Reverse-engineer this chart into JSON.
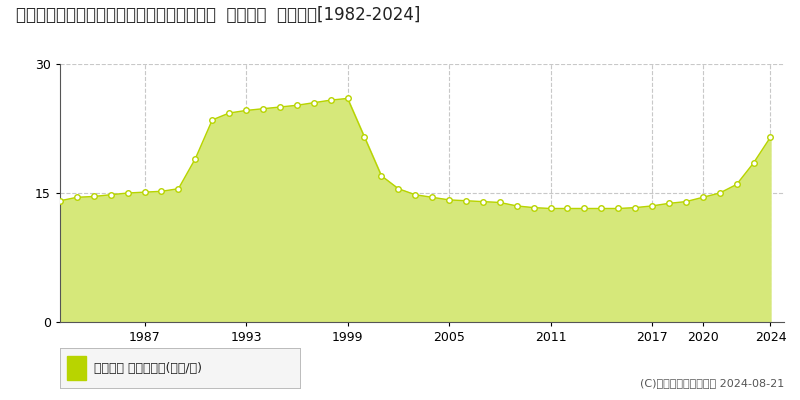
{
  "title": "北海道札幌市北区篠路１条３丁目１番５０外  地価公示  地価推移[1982-2024]",
  "years": [
    1982,
    1983,
    1984,
    1985,
    1986,
    1987,
    1988,
    1989,
    1990,
    1991,
    1992,
    1993,
    1994,
    1995,
    1996,
    1997,
    1998,
    1999,
    2000,
    2001,
    2002,
    2003,
    2004,
    2005,
    2006,
    2007,
    2008,
    2009,
    2010,
    2011,
    2012,
    2013,
    2014,
    2015,
    2016,
    2017,
    2018,
    2019,
    2020,
    2021,
    2022,
    2023,
    2024
  ],
  "values": [
    14.1,
    14.5,
    14.6,
    14.8,
    15.0,
    15.1,
    15.2,
    15.5,
    19.0,
    23.5,
    24.3,
    24.6,
    24.8,
    25.0,
    25.2,
    25.5,
    25.8,
    26.0,
    21.5,
    17.0,
    15.5,
    14.8,
    14.5,
    14.2,
    14.1,
    14.0,
    13.9,
    13.5,
    13.3,
    13.2,
    13.2,
    13.2,
    13.2,
    13.2,
    13.3,
    13.5,
    13.8,
    14.0,
    14.5,
    15.0,
    16.0,
    18.5,
    21.5
  ],
  "line_color": "#b8d400",
  "fill_color": "#d6e87a",
  "marker_facecolor": "#ffffff",
  "marker_edgecolor": "#b8d400",
  "fill_alpha": 1.0,
  "bg_color": "#ffffff",
  "plot_bg_color": "#ffffff",
  "grid_color": "#c8c8c8",
  "ylim": [
    0,
    30
  ],
  "yticks": [
    0,
    15,
    30
  ],
  "xlim": [
    1982,
    2024.8
  ],
  "xtick_years": [
    1987,
    1993,
    1999,
    2005,
    2011,
    2017,
    2020,
    2024
  ],
  "legend_label": "地価公示 平均坪単価(万円/坪)",
  "copyright_text": "(C)土地価格ドットコム 2024-08-21",
  "title_fontsize": 12,
  "tick_fontsize": 9,
  "legend_fontsize": 9
}
